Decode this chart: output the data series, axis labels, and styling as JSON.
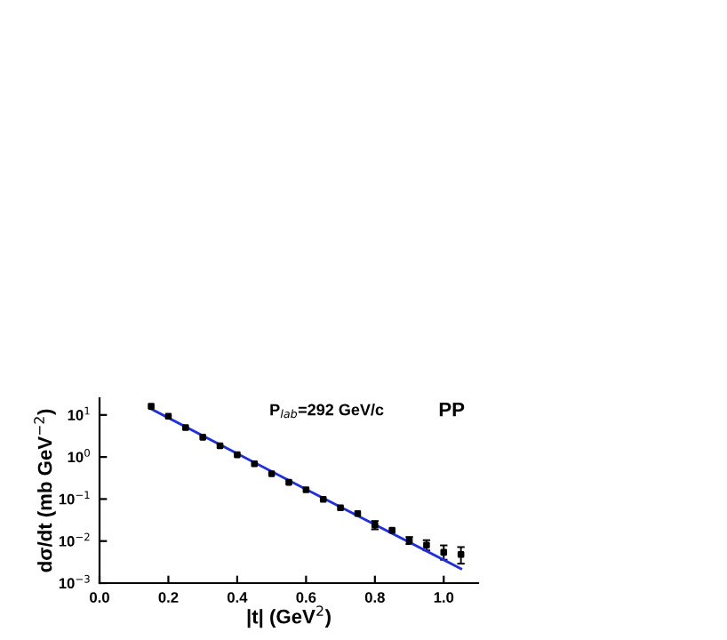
{
  "chart_data": {
    "type": "scatter",
    "xlabel": "|t| (GeV$^{2}$)",
    "ylabel": "dσ/dt (mb GeV$^{−2}$)",
    "annotations": [
      "P$_{lab}$=292 GeV/c",
      "PP"
    ],
    "log": "y",
    "xlim": [
      0,
      1.1
    ],
    "ylim": [
      0.001,
      25
    ],
    "xticks": [
      {
        "value": 0,
        "label": "0.0"
      },
      0.2,
      0.4,
      0.6,
      0.8,
      {
        "value": 1,
        "label": "1.0"
      }
    ],
    "yticks": [
      {
        "value": 0.001,
        "label": "10$^{−3}$"
      },
      {
        "value": 0.01,
        "label": "10$^{−2}$"
      },
      {
        "value": 0.1,
        "label": "10$^{−1}$"
      },
      {
        "value": 1,
        "label": "10$^{0}$"
      },
      {
        "value": 10,
        "label": "10$^{1}$"
      }
    ],
    "grid": false,
    "legend": false,
    "series": [
      {
        "color": "#000000",
        "marker": "square",
        "x": [
          0.15,
          0.2,
          0.25,
          0.3,
          0.35,
          0.4,
          0.45,
          0.5,
          0.55,
          0.6,
          0.65,
          0.7,
          0.75,
          0.8,
          0.85,
          0.9,
          0.95,
          1.0,
          1.05
        ],
        "values": [
          16,
          9.3,
          5.0,
          2.95,
          1.85,
          1.13,
          0.69,
          0.4,
          0.25,
          0.166,
          0.098,
          0.062,
          0.045,
          0.024,
          0.018,
          0.0103,
          0.008,
          0.0054,
          0.0048
        ],
        "errors": [
          null,
          null,
          null,
          null,
          null,
          null,
          null,
          null,
          null,
          null,
          null,
          null,
          null,
          [
            0.019,
            0.03
          ],
          null,
          [
            0.0085,
            0.0125
          ],
          [
            0.006,
            0.0105
          ],
          [
            0.0036,
            0.0079
          ],
          [
            0.0029,
            0.0072
          ]
        ]
      },
      {
        "type": "line",
        "color": "#1f2fe0",
        "line_style": "solid",
        "marker": "none",
        "x": [
          0.15,
          0.6,
          1.05
        ],
        "values": [
          13.9,
          0.17,
          0.0022
        ]
      }
    ]
  }
}
